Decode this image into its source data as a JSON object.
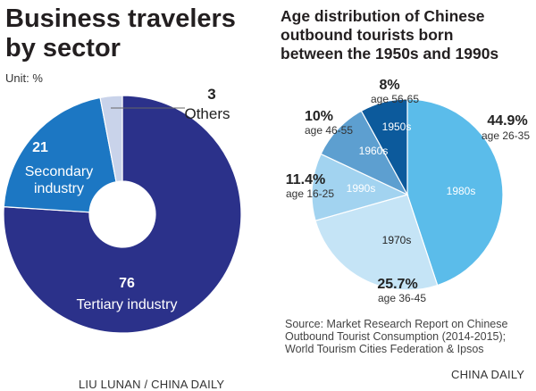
{
  "left": {
    "title_line1": "Business travelers",
    "title_line2": "by sector",
    "unit": "Unit: %",
    "credit": "LIU LUNAN / CHINA DAILY"
  },
  "right": {
    "title_line1": "Age distribution of Chinese",
    "title_line2": "outbound tourists born",
    "title_line3": "between the 1950s and 1990s",
    "source": "Source: Market Research Report on Chinese Outbound Tourist Consumption (2014-2015); World Tourism Cities Federation & Ipsos",
    "credit": "CHINA DAILY"
  },
  "chart_data": [
    {
      "type": "pie",
      "variant": "donut",
      "title": "Business travelers by sector",
      "unit": "%",
      "slices": [
        {
          "label": "Tertiary industry",
          "value": 76,
          "value_text": "76",
          "color": "#2b318a"
        },
        {
          "label_line1": "Secondary",
          "label_line2": "industry",
          "value": 21,
          "value_text": "21",
          "color": "#1c77c3"
        },
        {
          "label": "Others",
          "value": 3,
          "value_text": "3",
          "color": "#c9d3ea"
        }
      ]
    },
    {
      "type": "pie",
      "title": "Age distribution of Chinese outbound tourists born between the 1950s and 1990s",
      "slices": [
        {
          "label": "1980s",
          "value": 44.9,
          "value_text": "44.9%",
          "age": "age 26-35",
          "color": "#5bbcea"
        },
        {
          "label": "1970s",
          "value": 25.7,
          "value_text": "25.7%",
          "age": "age 36-45",
          "color": "#c5e4f6"
        },
        {
          "label": "1990s",
          "value": 11.4,
          "value_text": "11.4%",
          "age": "age 16-25",
          "color": "#a2d3f0"
        },
        {
          "label": "1960s",
          "value": 10,
          "value_text": "10%",
          "age": "age 46-55",
          "color": "#5d9fd0"
        },
        {
          "label": "1950s",
          "value": 8,
          "value_text": "8%",
          "age": "age 56-65",
          "color": "#0c5a9c"
        }
      ]
    }
  ]
}
